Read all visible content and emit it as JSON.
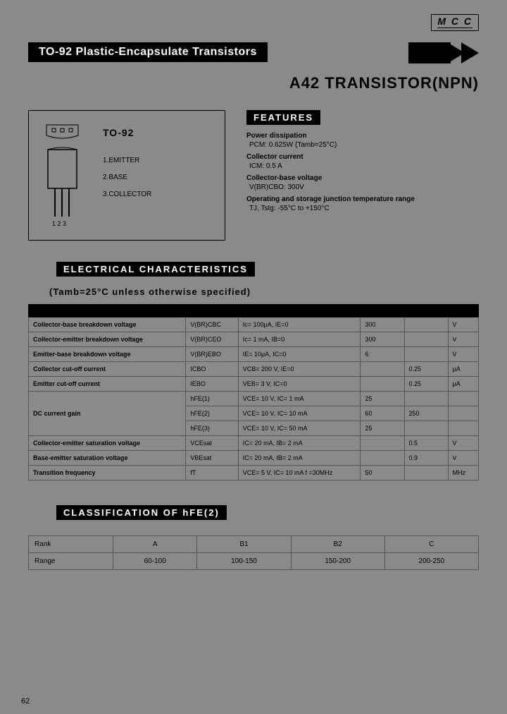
{
  "logo": "M C C",
  "banner_title": "TO-92 Plastic-Encapsulate Transistors",
  "product_title": "A42  TRANSISTOR(NPN)",
  "package": {
    "name": "TO-92",
    "pins": [
      "1.EMITTER",
      "2.BASE",
      "3.COLLECTOR"
    ],
    "pin_numbers": "1 2 3"
  },
  "features_header": "FEATURES",
  "features": [
    {
      "heading": "Power dissipation",
      "value": "PCM: 0.625W (Tamb=25°C)"
    },
    {
      "heading": "Collector current",
      "value": "ICM: 0.5 A"
    },
    {
      "heading": "Collector-base voltage",
      "value": "V(BR)CBO: 300V"
    },
    {
      "heading": "Operating and storage junction temperature range",
      "value": "TJ, Tstg: -55°C to +150°C"
    }
  ],
  "elec_header": "ELECTRICAL CHARACTERISTICS",
  "elec_subheader": "(Tamb=25°C unless otherwise  specified)",
  "elec_rows": [
    {
      "param": "Collector-base breakdown voltage",
      "sym": "V(BR)CBC",
      "cond": "Ic= 100μA, IE=0",
      "min": "300",
      "max": "",
      "unit": "V"
    },
    {
      "param": "Collector-emitter breakdown voltage",
      "sym": "V(BR)CEO",
      "cond": "Ic= 1 mA, IB=0",
      "min": "300",
      "max": "",
      "unit": "V"
    },
    {
      "param": "Emitter-base breakdown voltage",
      "sym": "V(BR)EBO",
      "cond": "IE= 10μA, IC=0",
      "min": "6",
      "max": "",
      "unit": "V"
    },
    {
      "param": "Collector cut-off current",
      "sym": "ICBO",
      "cond": "VCB= 200 V, IE=0",
      "min": "",
      "max": "0.25",
      "unit": "μA"
    },
    {
      "param": "Emitter cut-off current",
      "sym": "IEBO",
      "cond": "VEB= 3 V, IC=0",
      "min": "",
      "max": "0.25",
      "unit": "μA"
    },
    {
      "param": "",
      "sym": "hFE(1)",
      "cond": "VCE= 10 V, IC= 1 mA",
      "min": "25",
      "max": "",
      "unit": ""
    },
    {
      "param": "DC current gain",
      "sym": "hFE(2)",
      "cond": "VCE= 10 V, IC= 10 mA",
      "min": "60",
      "max": "250",
      "unit": ""
    },
    {
      "param": "",
      "sym": "hFE(3)",
      "cond": "VCE= 10 V, IC= 50 mA",
      "min": "25",
      "max": "",
      "unit": ""
    },
    {
      "param": "Collector-emitter saturation voltage",
      "sym": "VCEsat",
      "cond": "IC= 20 mA, IB= 2 mA",
      "min": "",
      "max": "0.5",
      "unit": "V"
    },
    {
      "param": "Base-emitter saturation voltage",
      "sym": "VBEsat",
      "cond": "IC= 20 mA, IB= 2 mA",
      "min": "",
      "max": "0.9",
      "unit": "V"
    },
    {
      "param": "Transition frequency",
      "sym": "fT",
      "cond": "VCE= 5 V, IC= 10 mA f =30MHz",
      "min": "50",
      "max": "",
      "unit": "MHz"
    }
  ],
  "class_header": "CLASSIFICATION OF hFE(2)",
  "class_table": {
    "labels": [
      "Rank",
      "Range"
    ],
    "cols": [
      "A",
      "B1",
      "B2",
      "C"
    ],
    "ranges": [
      "60-100",
      "100-150",
      "150-200",
      "200-250"
    ]
  },
  "page_number": "62",
  "colors": {
    "bg": "#8a8a8a",
    "black": "#000000",
    "border": "#555555"
  }
}
